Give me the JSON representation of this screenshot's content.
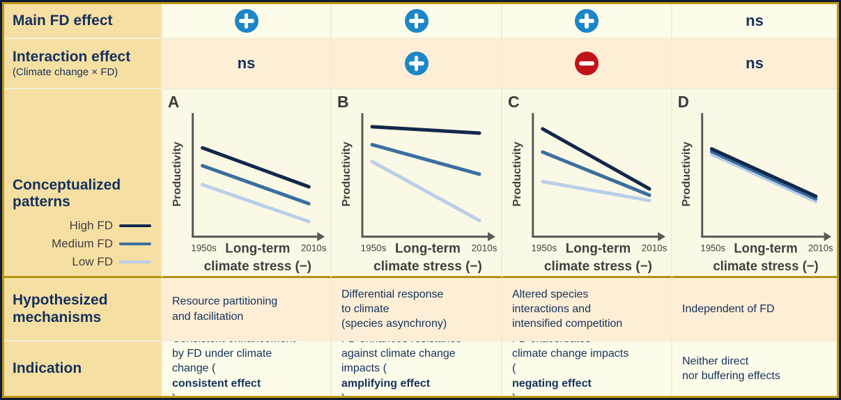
{
  "colors": {
    "plus_icon": "#1d86c8",
    "minus_icon": "#bf1318",
    "navy_text": "#14315d",
    "axis": "#595959"
  },
  "rows": {
    "main_effect_label": "Main FD effect",
    "interaction_label": "Interaction effect",
    "interaction_sublabel": "(Climate change × FD)",
    "patterns_label": "Conceptualized\npatterns",
    "mechanisms_label": "Hypothesized\nmechanisms",
    "indication_label": "Indication"
  },
  "effects": {
    "main": [
      "plus",
      "plus",
      "plus",
      "ns"
    ],
    "interaction": [
      "ns",
      "plus",
      "minus",
      "ns"
    ]
  },
  "legend": [
    {
      "label": "High FD",
      "color": "#12284c"
    },
    {
      "label": "Medium FD",
      "color": "#3a6fa0"
    },
    {
      "label": "Low FD",
      "color": "#b9cfe8"
    }
  ],
  "mechanisms": [
    "Resource partitioning\nand facilitation",
    "Differential response\nto climate\n(species asynchrony)",
    "Altered species\ninteractions and\nintensified competition",
    "Independent of FD"
  ],
  "indications": [
    [
      {
        "t": "Consistent enhancement\nby FD under climate\nchange ("
      },
      {
        "t": "consistent effect",
        "b": true
      },
      {
        "t": ")"
      }
    ],
    [
      {
        "t": "FD enhances resistance\nagainst climate change\nimpacts ("
      },
      {
        "t": "amplifying effect",
        "b": true
      },
      {
        "t": ")"
      }
    ],
    [
      {
        "t": "FD exacerbates\nclimate change impacts\n("
      },
      {
        "t": "negating effect",
        "b": true
      },
      {
        "t": ")"
      }
    ],
    [
      {
        "t": "Neither direct\nnor buffering effects"
      }
    ]
  ],
  "chart_data": [
    {
      "type": "line",
      "panel": "A",
      "x": [
        "1950s",
        "2010s"
      ],
      "xlabel_line1": "Long-term",
      "xlabel_line2": "climate stress (−)",
      "ylabel": "Productivity",
      "ylim": [
        0,
        100
      ],
      "grid": false,
      "series": [
        {
          "name": "High FD",
          "color": "#12284c",
          "values": [
            75,
            38
          ]
        },
        {
          "name": "Medium FD",
          "color": "#3a6fa0",
          "values": [
            58,
            22
          ]
        },
        {
          "name": "Low FD",
          "color": "#b9cfe8",
          "values": [
            40,
            5
          ]
        }
      ]
    },
    {
      "type": "line",
      "panel": "B",
      "x": [
        "1950s",
        "2010s"
      ],
      "xlabel_line1": "Long-term",
      "xlabel_line2": "climate stress (−)",
      "ylabel": "Productivity",
      "ylim": [
        0,
        100
      ],
      "grid": false,
      "series": [
        {
          "name": "High FD",
          "color": "#12284c",
          "values": [
            95,
            89
          ]
        },
        {
          "name": "Medium FD",
          "color": "#3a6fa0",
          "values": [
            78,
            50
          ]
        },
        {
          "name": "Low FD",
          "color": "#b9cfe8",
          "values": [
            62,
            6
          ]
        }
      ]
    },
    {
      "type": "line",
      "panel": "C",
      "x": [
        "1950s",
        "2010s"
      ],
      "xlabel_line1": "Long-term",
      "xlabel_line2": "climate stress (−)",
      "ylabel": "Productivity",
      "ylim": [
        0,
        100
      ],
      "grid": false,
      "series": [
        {
          "name": "High FD",
          "color": "#12284c",
          "values": [
            93,
            36
          ]
        },
        {
          "name": "Medium FD",
          "color": "#3a6fa0",
          "values": [
            71,
            30
          ]
        },
        {
          "name": "Low FD",
          "color": "#b9cfe8",
          "values": [
            43,
            25
          ]
        }
      ]
    },
    {
      "type": "line",
      "panel": "D",
      "x": [
        "1950s",
        "2010s"
      ],
      "xlabel_line1": "Long-term",
      "xlabel_line2": "climate stress (−)",
      "ylabel": "Productivity",
      "ylim": [
        0,
        100
      ],
      "grid": false,
      "series": [
        {
          "name": "High FD",
          "color": "#12284c",
          "values": [
            74,
            29
          ]
        },
        {
          "name": "Medium FD",
          "color": "#3a6fa0",
          "values": [
            71.5,
            26.5
          ]
        },
        {
          "name": "Low FD",
          "color": "#b9cfe8",
          "values": [
            69,
            24
          ]
        }
      ]
    }
  ]
}
